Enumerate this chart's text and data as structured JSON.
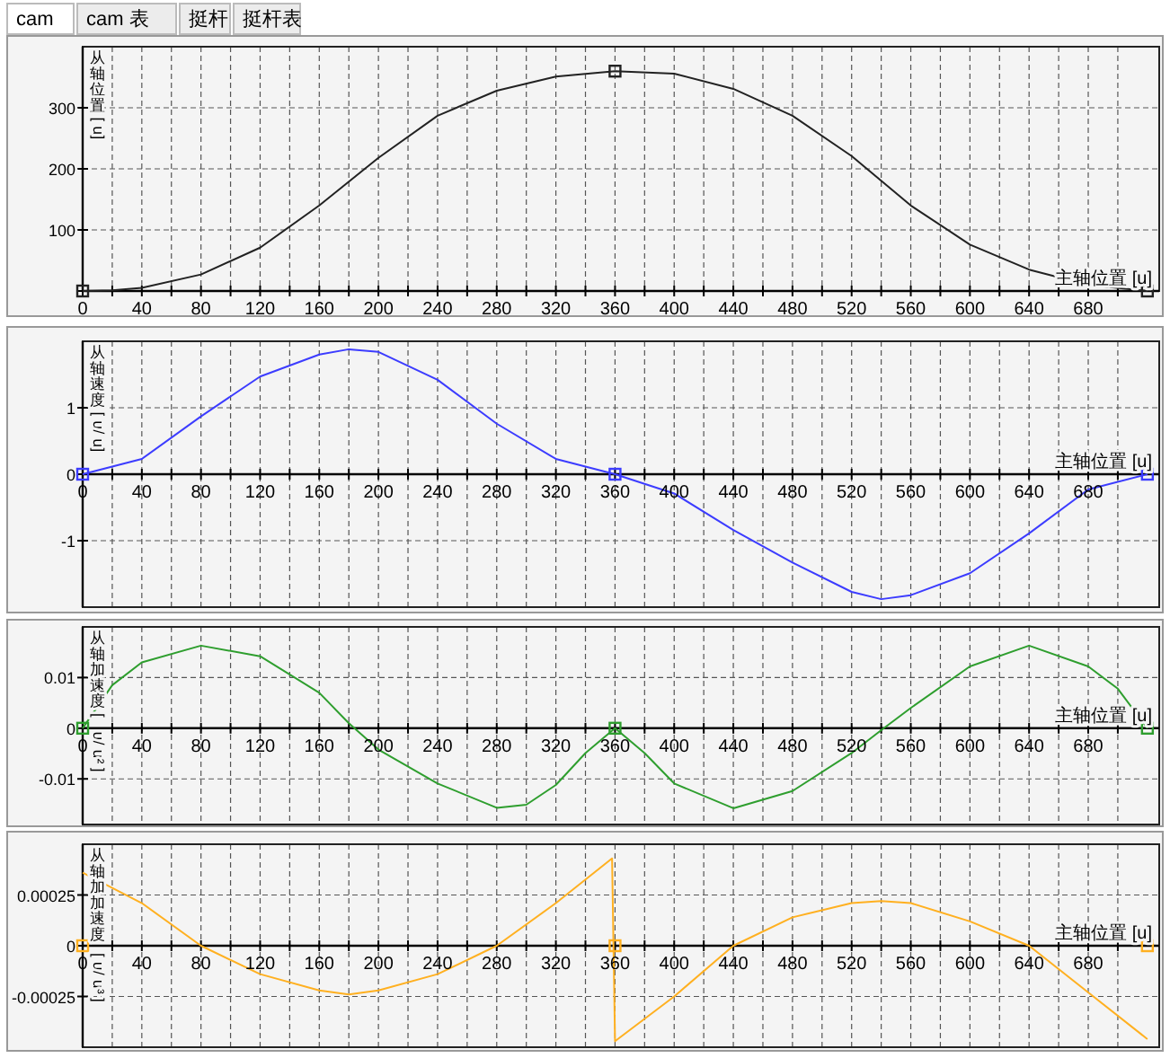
{
  "chart_data": [
    {
      "type": "line",
      "annotations": [
        "cam",
        "cam 表",
        "挺杆",
        "挺杆表"
      ],
      "xlabel": "主轴位置 [u]",
      "ylabel": "从轴位置 [u]",
      "xlim": [
        0,
        728
      ],
      "ylim": [
        0,
        400
      ],
      "xticks": [
        0,
        {
          "value": 20,
          "label": null
        },
        40,
        {
          "value": 60,
          "label": null
        },
        80,
        {
          "value": 100,
          "label": null
        },
        120,
        {
          "value": 140,
          "label": null
        },
        160,
        {
          "value": 180,
          "label": null
        },
        200,
        {
          "value": 220,
          "label": null
        },
        240,
        {
          "value": 260,
          "label": null
        },
        280,
        {
          "value": 300,
          "label": null
        },
        320,
        {
          "value": 340,
          "label": null
        },
        360,
        {
          "value": 380,
          "label": null
        },
        400,
        {
          "value": 420,
          "label": null
        },
        440,
        {
          "value": 460,
          "label": null
        },
        480,
        {
          "value": 500,
          "label": null
        },
        520,
        {
          "value": 540,
          "label": null
        },
        560,
        {
          "value": 580,
          "label": null
        },
        600,
        {
          "value": 620,
          "label": null
        },
        640,
        {
          "value": 660,
          "label": null
        },
        680,
        {
          "value": 700,
          "label": null
        }
      ],
      "yticks": [
        {
          "value": 0,
          "label": null
        },
        100,
        200,
        300
      ],
      "grid": true,
      "line_style": "solid",
      "series": [
        {
          "type": "line",
          "color": "#222222",
          "marker": "none",
          "x": [
            0,
            20,
            40,
            80,
            120,
            160,
            200,
            240,
            280,
            320,
            360,
            400,
            440,
            480,
            520,
            560,
            600,
            640,
            680,
            720
          ],
          "values": [
            0,
            1,
            5,
            27,
            71,
            140,
            218,
            287,
            328,
            351,
            360,
            356,
            331,
            287,
            221,
            140,
            76,
            35,
            10,
            0
          ]
        },
        {
          "type": "scatter",
          "color": "#222222",
          "marker": "square",
          "x": [
            0,
            360,
            720
          ],
          "values": [
            0,
            360,
            0
          ]
        }
      ]
    },
    {
      "type": "line",
      "xlabel": "主轴位置 [u]",
      "ylabel": "从轴速度 [u/u]",
      "xlim": [
        0,
        728
      ],
      "ylim": [
        -2,
        2
      ],
      "xticks": [
        0,
        {
          "value": 20,
          "label": null
        },
        40,
        {
          "value": 60,
          "label": null
        },
        80,
        {
          "value": 100,
          "label": null
        },
        120,
        {
          "value": 140,
          "label": null
        },
        160,
        {
          "value": 180,
          "label": null
        },
        200,
        {
          "value": 220,
          "label": null
        },
        240,
        {
          "value": 260,
          "label": null
        },
        280,
        {
          "value": 300,
          "label": null
        },
        320,
        {
          "value": 340,
          "label": null
        },
        360,
        {
          "value": 380,
          "label": null
        },
        400,
        {
          "value": 420,
          "label": null
        },
        440,
        {
          "value": 460,
          "label": null
        },
        480,
        {
          "value": 500,
          "label": null
        },
        520,
        {
          "value": 540,
          "label": null
        },
        560,
        {
          "value": 580,
          "label": null
        },
        600,
        {
          "value": 620,
          "label": null
        },
        640,
        {
          "value": 660,
          "label": null
        },
        680,
        {
          "value": 700,
          "label": null
        }
      ],
      "yticks": [
        -1,
        0,
        1
      ],
      "grid": true,
      "line_style": "solid",
      "series": [
        {
          "type": "line",
          "color": "#3c3cff",
          "marker": "none",
          "x": [
            0,
            40,
            80,
            120,
            160,
            180,
            200,
            240,
            280,
            320,
            360,
            400,
            440,
            480,
            520,
            540,
            560,
            600,
            640,
            680,
            720
          ],
          "values": [
            0,
            0.23,
            0.87,
            1.47,
            1.8,
            1.88,
            1.84,
            1.42,
            0.76,
            0.23,
            0,
            -0.29,
            -0.84,
            -1.33,
            -1.77,
            -1.88,
            -1.82,
            -1.49,
            -0.89,
            -0.23,
            0
          ]
        },
        {
          "type": "scatter",
          "color": "#3c3cff",
          "marker": "square",
          "x": [
            0,
            360,
            720
          ],
          "values": [
            0,
            0,
            0
          ]
        }
      ]
    },
    {
      "type": "line",
      "xlabel": "主轴位置 [u]",
      "ylabel": "从轴加速度 [u/u²]",
      "xlim": [
        0,
        728
      ],
      "ylim": [
        -0.019,
        0.02
      ],
      "xticks": [
        0,
        {
          "value": 20,
          "label": null
        },
        40,
        {
          "value": 60,
          "label": null
        },
        80,
        {
          "value": 100,
          "label": null
        },
        120,
        {
          "value": 140,
          "label": null
        },
        160,
        {
          "value": 180,
          "label": null
        },
        200,
        {
          "value": 220,
          "label": null
        },
        240,
        {
          "value": 260,
          "label": null
        },
        280,
        {
          "value": 300,
          "label": null
        },
        320,
        {
          "value": 340,
          "label": null
        },
        360,
        {
          "value": 380,
          "label": null
        },
        400,
        {
          "value": 420,
          "label": null
        },
        440,
        {
          "value": 460,
          "label": null
        },
        480,
        {
          "value": 500,
          "label": null
        },
        520,
        {
          "value": 540,
          "label": null
        },
        560,
        {
          "value": 580,
          "label": null
        },
        600,
        {
          "value": 620,
          "label": null
        },
        640,
        {
          "value": 660,
          "label": null
        },
        680,
        {
          "value": 700,
          "label": null
        }
      ],
      "yticks": [
        -0.01,
        0,
        0.01
      ],
      "grid": true,
      "line_style": "solid",
      "series": [
        {
          "type": "line",
          "color": "#2e9e2e",
          "marker": "none",
          "x": [
            0,
            20,
            40,
            80,
            120,
            160,
            180,
            200,
            240,
            280,
            300,
            320,
            340,
            360,
            380,
            400,
            440,
            480,
            520,
            540,
            560,
            600,
            640,
            680,
            700,
            720
          ],
          "values": [
            0,
            0.0085,
            0.013,
            0.0163,
            0.0142,
            0.007,
            0.001,
            -0.0042,
            -0.0109,
            -0.0157,
            -0.0151,
            -0.0112,
            -0.0049,
            0,
            -0.0049,
            -0.0109,
            -0.0158,
            -0.0124,
            -0.0049,
            -0.0004,
            0.004,
            0.0122,
            0.0163,
            0.0122,
            0.0078,
            0
          ]
        },
        {
          "type": "scatter",
          "color": "#2e9e2e",
          "marker": "square",
          "x": [
            0,
            360,
            720
          ],
          "values": [
            0,
            0,
            0
          ]
        }
      ]
    },
    {
      "type": "line",
      "xlabel": "主轴位置 [u]",
      "ylabel": "从轴加加速度 [u/u³]",
      "xlim": [
        0,
        728
      ],
      "ylim": [
        -0.0005,
        0.0005
      ],
      "xticks": [
        0,
        {
          "value": 20,
          "label": null
        },
        40,
        {
          "value": 60,
          "label": null
        },
        80,
        {
          "value": 100,
          "label": null
        },
        120,
        {
          "value": 140,
          "label": null
        },
        160,
        {
          "value": 180,
          "label": null
        },
        200,
        {
          "value": 220,
          "label": null
        },
        240,
        {
          "value": 260,
          "label": null
        },
        280,
        {
          "value": 300,
          "label": null
        },
        320,
        {
          "value": 340,
          "label": null
        },
        360,
        {
          "value": 380,
          "label": null
        },
        400,
        {
          "value": 420,
          "label": null
        },
        440,
        {
          "value": 460,
          "label": null
        },
        480,
        {
          "value": 500,
          "label": null
        },
        520,
        {
          "value": 540,
          "label": null
        },
        560,
        {
          "value": 580,
          "label": null
        },
        600,
        {
          "value": 620,
          "label": null
        },
        640,
        {
          "value": 660,
          "label": null
        },
        680,
        {
          "value": 700,
          "label": null
        }
      ],
      "yticks": [
        -0.00025,
        0,
        0.00025
      ],
      "grid": true,
      "line_style": "solid",
      "series": [
        {
          "type": "line",
          "color": "#ffb020",
          "marker": "none",
          "x": [
            0,
            40,
            80,
            120,
            160,
            180,
            200,
            240,
            280,
            320,
            358,
            360,
            400,
            440,
            480,
            520,
            540,
            560,
            600,
            640,
            680,
            720
          ],
          "values": [
            0.00036,
            0.00021,
            0,
            -0.00014,
            -0.00022,
            -0.00024,
            -0.00022,
            -0.00014,
            0,
            0.00021,
            0.00043,
            -0.00047,
            -0.00025,
            0,
            0.00014,
            0.00021,
            0.00022,
            0.00021,
            0.00012,
            0,
            -0.00023,
            -0.00046
          ]
        },
        {
          "type": "scatter",
          "color": "#ffb020",
          "marker": "square",
          "x": [
            0,
            360,
            720
          ],
          "values": [
            0,
            0,
            0
          ]
        }
      ]
    }
  ]
}
